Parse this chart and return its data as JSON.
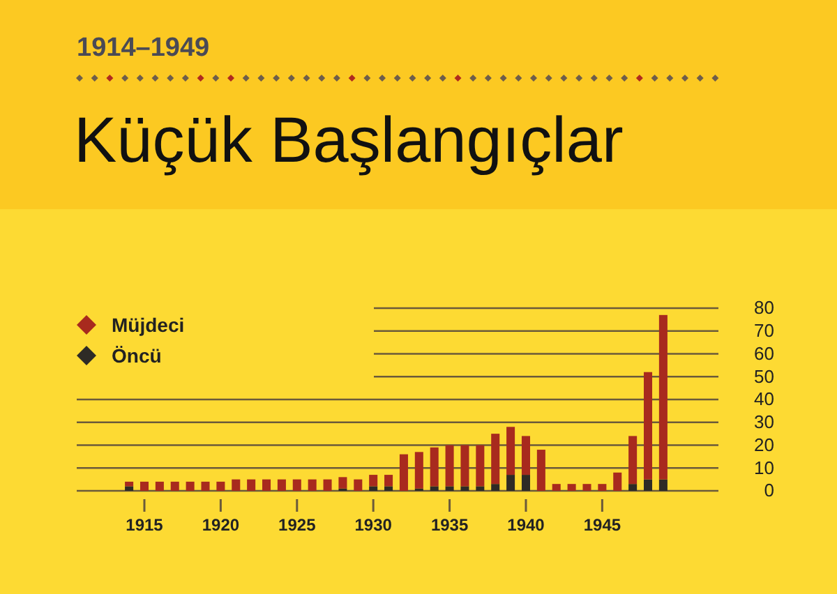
{
  "chart_data": {
    "type": "bar",
    "title": "Küçük Başlangıçlar",
    "subtitle": "1914–1949",
    "categories": [
      null,
      "1915",
      null,
      null,
      null,
      null,
      "1920",
      null,
      null,
      null,
      null,
      "1925",
      null,
      null,
      null,
      null,
      "1930",
      null,
      null,
      null,
      null,
      "1935",
      null,
      null,
      null,
      null,
      "1940",
      null,
      null,
      null,
      null,
      "1945",
      null,
      null,
      null,
      null
    ],
    "stacked": true,
    "series": [
      {
        "name": "Öncü",
        "color": "#2e2b26",
        "values": [
          2,
          0,
          0,
          0,
          0,
          0,
          0,
          0,
          0,
          0,
          0,
          0,
          0,
          0,
          1,
          0,
          2,
          2,
          0,
          1,
          2,
          2,
          2,
          2,
          3,
          7,
          7,
          0,
          0,
          0,
          0,
          0,
          0,
          3,
          5,
          5
        ]
      },
      {
        "name": "Müjdeci",
        "color": "#a82a1e",
        "values": [
          2,
          4,
          4,
          4,
          4,
          4,
          4,
          5,
          5,
          5,
          5,
          5,
          5,
          5,
          5,
          5,
          5,
          5,
          16,
          16,
          17,
          18,
          18,
          18,
          22,
          21,
          17,
          18,
          3,
          3,
          3,
          3,
          8,
          21,
          47,
          72
        ]
      }
    ],
    "ylim": [
      0,
      80
    ],
    "yticks": [
      0,
      10,
      20,
      30,
      40,
      50,
      60,
      70,
      80
    ],
    "grid": "y",
    "legend": "top left"
  }
}
